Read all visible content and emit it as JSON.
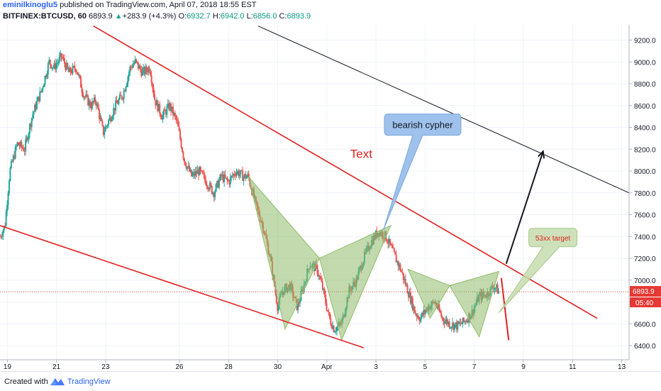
{
  "header": {
    "author": "eminilkinoglu5",
    "published_text": "published on TradingView.com, April 07, 2018 18:55 EST",
    "symbol": "BITFINEX:BTCUSD, 60",
    "last_price": "6893.9",
    "change_arrow": "▲",
    "change": "+283.9 (+4.3%)",
    "open_label": "O:",
    "open": "6932.7",
    "high_label": "H:",
    "high": "6942.0",
    "low_label": "L:",
    "low": "6856.0",
    "close_label": "C:",
    "close": "6893.9"
  },
  "footer": {
    "created_with": "Created with",
    "brand": "TradingView"
  },
  "colors": {
    "up": "#26a69a",
    "down": "#ef5350",
    "red_line": "#e02020",
    "pattern": "#8fbc6a",
    "callout_blue": "#9ec2ec",
    "callout_green": "#c6dcae",
    "price_badge": "#e53935",
    "brand": "#2962ff"
  },
  "chart_data": {
    "type": "candlestick",
    "symbol": "BITFINEX:BTCUSD",
    "interval": "60",
    "x_tick_labels": [
      "19",
      "21",
      "23",
      "26",
      "28",
      "30",
      "Apr",
      "3",
      "5",
      "7",
      "9",
      "11",
      "13"
    ],
    "x_tick_days": [
      19,
      21,
      23,
      26,
      28,
      30,
      32,
      34,
      36,
      38,
      40,
      42,
      44
    ],
    "y_tick_labels": [
      "9200.0",
      "9000.0",
      "8800.0",
      "8600.0",
      "8400.0",
      "8200.0",
      "8000.0",
      "7800.0",
      "7600.0",
      "7400.0",
      "7200.0",
      "7000.0",
      "6800.0",
      "6600.0",
      "6400.0"
    ],
    "y_ticks": [
      9200,
      9000,
      8800,
      8600,
      8400,
      8200,
      8000,
      7800,
      7600,
      7400,
      7200,
      7000,
      6800,
      6600,
      6400
    ],
    "ylim": [
      6270,
      9340
    ],
    "xlim_days": [
      18.7,
      44.3
    ],
    "current_price": 6893.9,
    "current_price_label": "6893.9",
    "countdown_label": "05:40",
    "price_path": [
      [
        18.7,
        7400
      ],
      [
        18.9,
        7500
      ],
      [
        19.1,
        8000
      ],
      [
        19.4,
        8250
      ],
      [
        19.7,
        8200
      ],
      [
        20.0,
        8500
      ],
      [
        20.4,
        8750
      ],
      [
        20.7,
        9000
      ],
      [
        20.9,
        8950
      ],
      [
        21.2,
        9050
      ],
      [
        21.5,
        8900
      ],
      [
        21.8,
        8950
      ],
      [
        22.1,
        8700
      ],
      [
        22.4,
        8600
      ],
      [
        22.6,
        8650
      ],
      [
        22.9,
        8350
      ],
      [
        23.1,
        8450
      ],
      [
        23.4,
        8600
      ],
      [
        23.7,
        8700
      ],
      [
        24.0,
        8950
      ],
      [
        24.2,
        9000
      ],
      [
        24.5,
        8900
      ],
      [
        24.8,
        8950
      ],
      [
        25.0,
        8650
      ],
      [
        25.3,
        8500
      ],
      [
        25.6,
        8600
      ],
      [
        25.9,
        8450
      ],
      [
        26.2,
        8100
      ],
      [
        26.5,
        7950
      ],
      [
        26.8,
        8000
      ],
      [
        27.1,
        7900
      ],
      [
        27.4,
        7800
      ],
      [
        27.7,
        7950
      ],
      [
        28.0,
        7900
      ],
      [
        28.3,
        8000
      ],
      [
        28.6,
        7950
      ],
      [
        28.8,
        7950
      ],
      [
        29.1,
        7700
      ],
      [
        29.4,
        7500
      ],
      [
        29.7,
        7200
      ],
      [
        30.0,
        6750
      ],
      [
        30.2,
        6900
      ],
      [
        30.5,
        6950
      ],
      [
        30.8,
        6750
      ],
      [
        31.0,
        6900
      ],
      [
        31.3,
        7150
      ],
      [
        31.6,
        7100
      ],
      [
        31.8,
        6950
      ],
      [
        32.1,
        6650
      ],
      [
        32.3,
        6550
      ],
      [
        32.6,
        6600
      ],
      [
        32.9,
        6900
      ],
      [
        33.2,
        7000
      ],
      [
        33.5,
        7200
      ],
      [
        33.8,
        7350
      ],
      [
        34.1,
        7450
      ],
      [
        34.4,
        7400
      ],
      [
        34.7,
        7250
      ],
      [
        35.0,
        7100
      ],
      [
        35.3,
        6900
      ],
      [
        35.6,
        6700
      ],
      [
        35.8,
        6650
      ],
      [
        36.1,
        6750
      ],
      [
        36.4,
        6800
      ],
      [
        36.7,
        6650
      ],
      [
        37.0,
        6600
      ],
      [
        37.3,
        6580
      ],
      [
        37.6,
        6620
      ],
      [
        37.9,
        6700
      ],
      [
        38.2,
        6850
      ],
      [
        38.5,
        6870
      ],
      [
        38.8,
        6950
      ],
      [
        39.0,
        6894
      ]
    ],
    "annotations": {
      "texts": [
        {
          "text": "Text",
          "day": 33.4,
          "price": 8120,
          "color": "#e02020"
        },
        {
          "text": "bearish cypher",
          "day": 35.9,
          "price": 8425,
          "color": "#131722"
        },
        {
          "text": "53xx target",
          "day": 41.2,
          "price": 7390,
          "color": "#e02020"
        }
      ],
      "red_lines": [
        {
          "from": [
            22.5,
            9330
          ],
          "to": [
            43.0,
            6650
          ]
        },
        {
          "from": [
            18.7,
            7500
          ],
          "to": [
            33.5,
            6380
          ]
        }
      ],
      "black_line": {
        "from": [
          29.2,
          9330
        ],
        "to": [
          44.3,
          7800
        ]
      },
      "arrow": {
        "from": [
          39.3,
          7150
        ],
        "to": [
          40.8,
          8180
        ]
      },
      "red_stub": {
        "from": [
          39.1,
          7020
        ],
        "to": [
          39.4,
          6450
        ]
      },
      "cypher_1": [
        [
          28.8,
          7950
        ],
        [
          30.3,
          6550
        ],
        [
          31.7,
          7200
        ],
        [
          32.6,
          6450
        ],
        [
          34.6,
          7500
        ]
      ],
      "cypher_2": [
        [
          35.3,
          7100
        ],
        [
          36.2,
          6650
        ],
        [
          37.0,
          6950
        ],
        [
          38.2,
          6480
        ],
        [
          39.0,
          7080
        ]
      ]
    }
  }
}
